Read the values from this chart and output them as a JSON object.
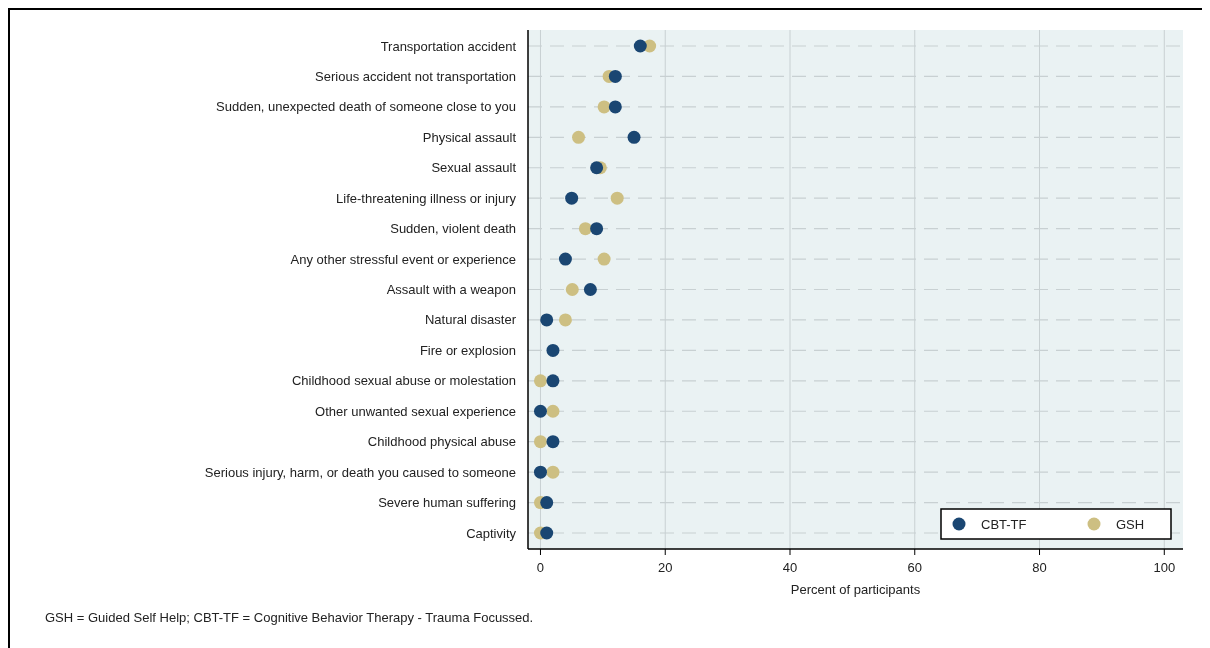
{
  "chart_data": {
    "type": "scatter",
    "orientation": "horizontal",
    "xlabel": "Percent of participants",
    "categories": [
      "Transportation accident",
      "Serious accident not transportation",
      "Sudden, unexpected death of someone close to you",
      "Physical assault",
      "Sexual assault",
      "Life-threatening illness or injury",
      "Sudden, violent death",
      "Any other stressful event or experience",
      "Assault with a weapon",
      "Natural disaster",
      "Fire or explosion",
      "Childhood sexual abuse or molestation",
      "Other unwanted sexual experience",
      "Childhood physical abuse",
      "Serious injury, harm, or death you caused to someone",
      "Severe human suffering",
      "Captivity"
    ],
    "series": [
      {
        "name": "CBT-TF",
        "color": "#1a4672",
        "values": [
          16,
          12,
          12,
          15,
          9,
          5,
          9,
          4,
          8,
          1,
          2,
          2,
          0,
          2,
          0,
          1,
          1
        ]
      },
      {
        "name": "GSH",
        "color": "#cdbf82",
        "values": [
          17.5,
          11,
          10.2,
          6.1,
          9.6,
          12.3,
          7.2,
          10.2,
          5.1,
          4,
          null,
          0,
          2,
          0,
          2,
          0,
          0
        ]
      }
    ],
    "xlim": [
      -2,
      103
    ],
    "xticks": [
      0,
      20,
      40,
      60,
      80,
      100
    ],
    "grid": true,
    "legend": "bottom right",
    "marker": "circle",
    "annotations": [
      "GSH = Guided Self Help; CBT-TF = Cognitive Behavior Therapy - Trauma Focussed."
    ]
  }
}
